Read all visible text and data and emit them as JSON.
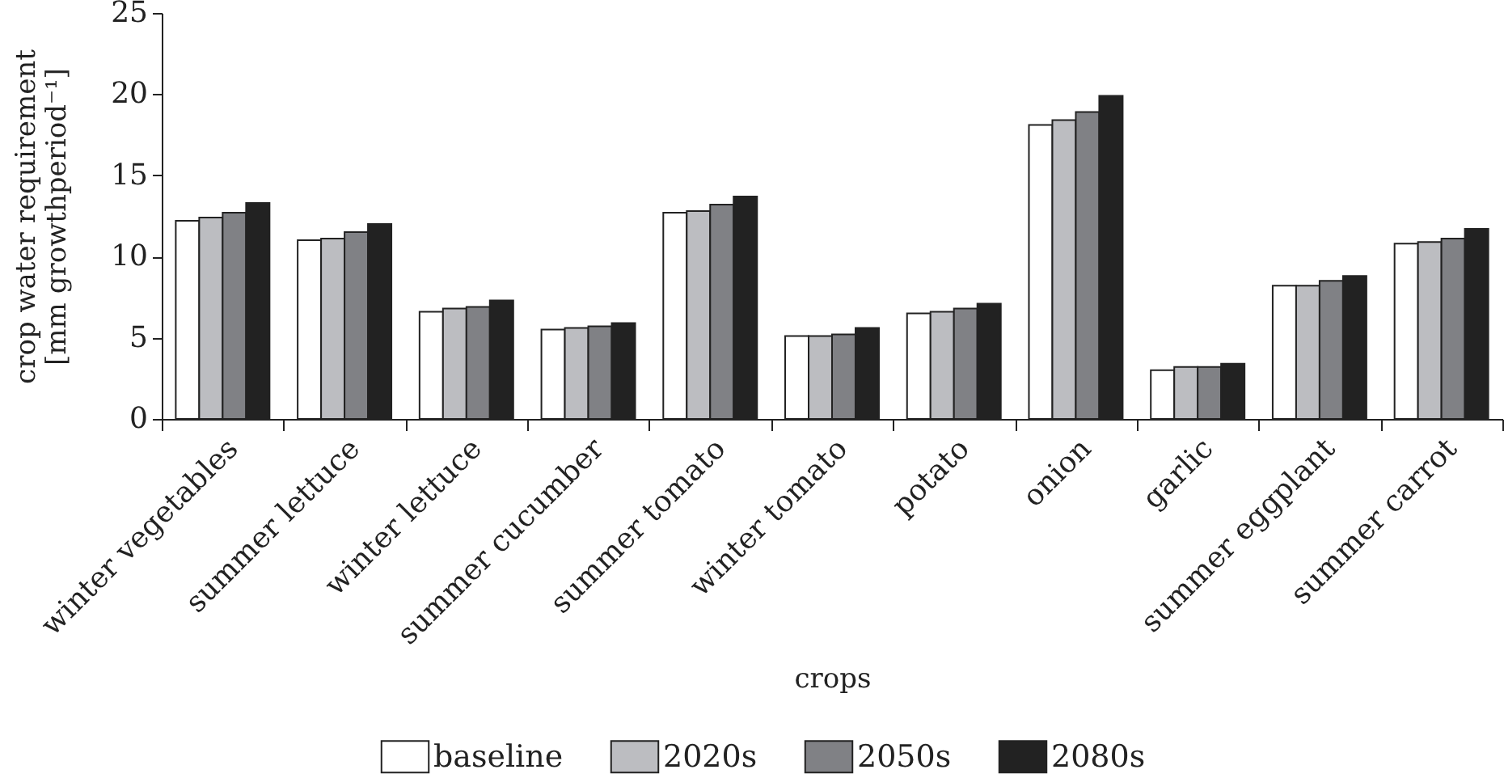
{
  "chart_data": {
    "type": "bar",
    "xlabel": "crops",
    "ylabel": "crop water requirement [mm growthperiod⁻¹]",
    "categories": [
      "winter vegetables",
      "summer lettuce",
      "winter lettuce",
      "summer cucumber",
      "summer tomato",
      "winter tomato",
      "potato",
      "onion",
      "garlic",
      "summer eggplant",
      "summer carrot"
    ],
    "series": [
      {
        "name": "baseline",
        "color": "#ffffff",
        "values": [
          12.2,
          11.0,
          6.6,
          5.5,
          12.7,
          5.1,
          6.5,
          18.1,
          3.0,
          8.2,
          10.8
        ]
      },
      {
        "name": "2020s",
        "color": "#bcbdc1",
        "values": [
          12.4,
          11.1,
          6.8,
          5.6,
          12.8,
          5.1,
          6.6,
          18.4,
          3.2,
          8.2,
          10.9
        ]
      },
      {
        "name": "2050s",
        "color": "#808185",
        "values": [
          12.7,
          11.5,
          6.9,
          5.7,
          13.2,
          5.2,
          6.8,
          18.9,
          3.2,
          8.5,
          11.1
        ]
      },
      {
        "name": "2080s",
        "color": "#222222",
        "values": [
          13.3,
          12.0,
          7.3,
          5.9,
          13.7,
          5.6,
          7.1,
          19.9,
          3.4,
          8.8,
          11.7
        ]
      }
    ],
    "ylim": [
      0,
      25
    ],
    "yticks": [
      0,
      5,
      10,
      15,
      20,
      25
    ],
    "legend": "bottom"
  }
}
